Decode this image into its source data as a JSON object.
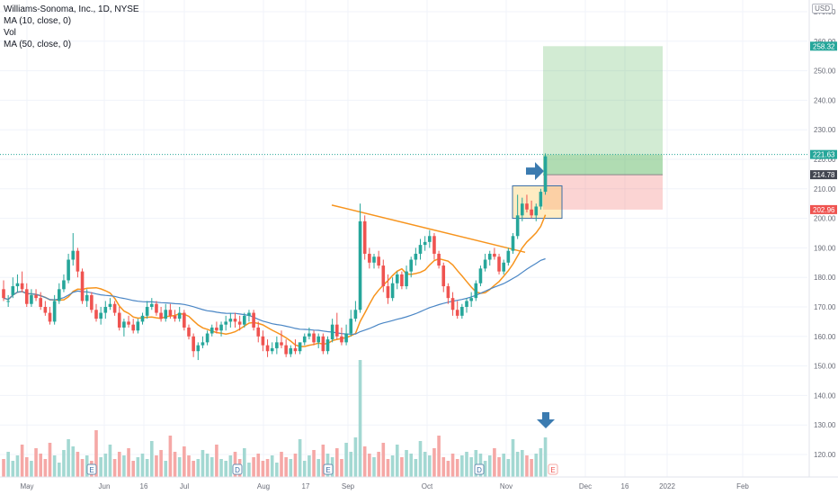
{
  "legend": {
    "title": "Williams-Sonoma, Inc., 1D, NYSE",
    "line2": "MA (10, close, 0)",
    "line3": "Vol",
    "line4": "MA (50, close, 0)"
  },
  "currency": "USD",
  "chart_data": {
    "type": "candlestick",
    "title": "Williams-Sonoma, Inc., 1D, NYSE",
    "ylim": [
      112,
      265
    ],
    "y_ticks": [
      120,
      130,
      140,
      150,
      160,
      170,
      180,
      190,
      200,
      210,
      220,
      230,
      240,
      250,
      260,
      270
    ],
    "x_ticks": [
      "May",
      "Jun",
      "16",
      "Jul",
      "Aug",
      "17",
      "Sep",
      "Oct",
      "Nov",
      "Dec",
      "16",
      "2022",
      "Feb"
    ],
    "grid": true,
    "candles": [
      [
        176,
        179,
        173,
        172
      ],
      [
        172,
        174,
        172,
        170
      ],
      [
        174,
        180,
        177,
        173
      ],
      [
        177,
        181,
        178,
        175
      ],
      [
        178,
        182,
        176,
        175
      ],
      [
        176,
        178,
        171,
        170
      ],
      [
        171,
        176,
        174,
        170
      ],
      [
        174,
        176,
        173,
        172
      ],
      [
        173,
        175,
        170,
        169
      ],
      [
        170,
        172,
        168,
        167
      ],
      [
        168,
        170,
        165,
        164
      ],
      [
        165,
        174,
        172,
        164
      ],
      [
        172,
        178,
        176,
        171
      ],
      [
        176,
        181,
        179,
        175
      ],
      [
        179,
        188,
        186,
        178
      ],
      [
        186,
        195,
        189,
        184
      ],
      [
        189,
        190,
        182,
        180
      ],
      [
        182,
        183,
        172,
        171
      ],
      [
        172,
        176,
        174,
        170
      ],
      [
        174,
        175,
        169,
        168
      ],
      [
        169,
        171,
        166,
        165
      ],
      [
        166,
        170,
        168,
        164
      ],
      [
        168,
        172,
        170,
        166
      ],
      [
        170,
        173,
        171,
        169
      ],
      [
        171,
        172,
        168,
        167
      ],
      [
        168,
        170,
        163,
        162
      ],
      [
        163,
        166,
        165,
        160
      ],
      [
        165,
        167,
        164,
        163
      ],
      [
        164,
        166,
        162,
        161
      ],
      [
        162,
        166,
        165,
        161
      ],
      [
        165,
        168,
        167,
        164
      ],
      [
        167,
        172,
        170,
        166
      ],
      [
        170,
        173,
        171,
        169
      ],
      [
        171,
        172,
        168,
        167
      ],
      [
        168,
        170,
        166,
        165
      ],
      [
        166,
        171,
        169,
        165
      ],
      [
        169,
        171,
        167,
        166
      ],
      [
        167,
        169,
        166,
        165
      ],
      [
        166,
        170,
        168,
        165
      ],
      [
        168,
        169,
        163,
        162
      ],
      [
        163,
        164,
        160,
        159
      ],
      [
        160,
        161,
        155,
        153
      ],
      [
        155,
        158,
        157,
        152
      ],
      [
        157,
        160,
        158,
        156
      ],
      [
        158,
        162,
        161,
        157
      ],
      [
        161,
        164,
        163,
        160
      ],
      [
        163,
        165,
        162,
        161
      ],
      [
        162,
        165,
        164,
        160
      ],
      [
        164,
        167,
        165,
        162
      ],
      [
        165,
        168,
        166,
        163
      ],
      [
        166,
        168,
        165,
        163
      ],
      [
        165,
        167,
        164,
        162
      ],
      [
        164,
        168,
        167,
        163
      ],
      [
        167,
        169,
        168,
        165
      ],
      [
        168,
        169,
        163,
        162
      ],
      [
        163,
        165,
        160,
        158
      ],
      [
        160,
        162,
        157,
        155
      ],
      [
        157,
        159,
        155,
        153
      ],
      [
        155,
        158,
        156,
        154
      ],
      [
        156,
        160,
        158,
        154
      ],
      [
        158,
        162,
        157,
        156
      ],
      [
        157,
        159,
        154,
        153
      ],
      [
        154,
        157,
        156,
        153
      ],
      [
        156,
        159,
        155,
        154
      ],
      [
        155,
        157,
        158,
        154
      ],
      [
        158,
        161,
        160,
        157
      ],
      [
        160,
        163,
        161,
        159
      ],
      [
        161,
        162,
        158,
        157
      ],
      [
        158,
        161,
        160,
        156
      ],
      [
        160,
        161,
        155,
        154
      ],
      [
        155,
        160,
        159,
        154
      ],
      [
        159,
        166,
        164,
        158
      ],
      [
        164,
        168,
        160,
        159
      ],
      [
        160,
        163,
        158,
        157
      ],
      [
        158,
        164,
        161,
        157
      ],
      [
        161,
        169,
        166,
        160
      ],
      [
        166,
        172,
        169,
        165
      ],
      [
        169,
        205,
        199,
        168
      ],
      [
        199,
        201,
        188,
        186
      ],
      [
        188,
        190,
        185,
        183
      ],
      [
        185,
        188,
        187,
        183
      ],
      [
        187,
        189,
        184,
        183
      ],
      [
        184,
        186,
        177,
        175
      ],
      [
        177,
        181,
        173,
        171
      ],
      [
        173,
        180,
        178,
        172
      ],
      [
        178,
        182,
        181,
        176
      ],
      [
        181,
        182,
        177,
        176
      ],
      [
        177,
        184,
        182,
        176
      ],
      [
        182,
        187,
        186,
        180
      ],
      [
        186,
        190,
        188,
        184
      ],
      [
        188,
        193,
        191,
        186
      ],
      [
        191,
        194,
        192,
        189
      ],
      [
        192,
        196,
        194,
        190
      ],
      [
        194,
        195,
        188,
        186
      ],
      [
        188,
        189,
        184,
        183
      ],
      [
        184,
        185,
        177,
        175
      ],
      [
        177,
        178,
        173,
        171
      ],
      [
        173,
        175,
        169,
        167
      ],
      [
        169,
        172,
        167,
        166
      ],
      [
        167,
        171,
        170,
        166
      ],
      [
        170,
        173,
        172,
        168
      ],
      [
        172,
        175,
        173,
        170
      ],
      [
        173,
        179,
        178,
        172
      ],
      [
        178,
        184,
        183,
        177
      ],
      [
        183,
        188,
        186,
        182
      ],
      [
        186,
        189,
        188,
        184
      ],
      [
        188,
        190,
        187,
        186
      ],
      [
        187,
        188,
        182,
        181
      ],
      [
        182,
        186,
        185,
        181
      ],
      [
        185,
        190,
        189,
        184
      ],
      [
        189,
        195,
        194,
        188
      ],
      [
        194,
        208,
        201,
        193
      ],
      [
        201,
        207,
        205,
        199
      ],
      [
        205,
        208,
        203,
        202
      ],
      [
        203,
        206,
        201,
        200
      ],
      [
        201,
        205,
        204,
        199
      ],
      [
        204,
        210,
        209,
        203
      ],
      [
        209,
        222,
        221,
        208
      ]
    ],
    "volumes": [
      1.0,
      1.4,
      0.9,
      1.2,
      1.8,
      1.1,
      0.9,
      1.6,
      1.3,
      1.0,
      1.9,
      1.2,
      0.8,
      1.5,
      2.1,
      1.7,
      1.4,
      1.0,
      1.2,
      0.9,
      2.6,
      1.1,
      1.3,
      1.8,
      1.0,
      1.4,
      1.2,
      1.6,
      0.9,
      1.1,
      1.3,
      1.0,
      2.0,
      1.2,
      1.5,
      0.9,
      2.3,
      1.4,
      1.1,
      1.7,
      1.2,
      0.9,
      1.0,
      1.5,
      1.3,
      1.1,
      1.8,
      1.0,
      0.9,
      1.2,
      1.4,
      1.0,
      1.6,
      0.8,
      1.1,
      1.3,
      0.9,
      1.0,
      1.2,
      0.8,
      1.4,
      1.1,
      1.0,
      1.3,
      2.1,
      0.9,
      1.2,
      1.5,
      1.0,
      1.8,
      1.3,
      1.1,
      1.6,
      1.0,
      1.9,
      1.4,
      2.2,
      6.5,
      1.7,
      1.3,
      1.1,
      1.4,
      1.9,
      1.0,
      1.2,
      1.8,
      1.1,
      1.5,
      1.3,
      1.0,
      2.0,
      1.4,
      1.2,
      1.6,
      2.3,
      1.1,
      0.9,
      1.3,
      1.0,
      1.2,
      1.4,
      1.1,
      1.5,
      1.3,
      0.9,
      1.2,
      1.6,
      1.1,
      1.3,
      1.0,
      2.1,
      1.4,
      1.5,
      1.2,
      1.0,
      1.3,
      1.6,
      2.2
    ],
    "volume_labels": [
      "E",
      "D",
      "E",
      "D",
      "E"
    ],
    "position": {
      "target": 258.32,
      "entry": 214.78,
      "stop": 202.96,
      "last": 221.63
    },
    "trendline": {
      "from": 204.5,
      "to": 188.5
    },
    "colors": {
      "up": "#26a69a",
      "down": "#ef5350",
      "ma10": "#f7941d",
      "ma50": "#4a86c5",
      "profit": "#4caf50",
      "loss": "#ef5350",
      "last": "#26a69a",
      "arrow": "#3b7bb0"
    }
  }
}
